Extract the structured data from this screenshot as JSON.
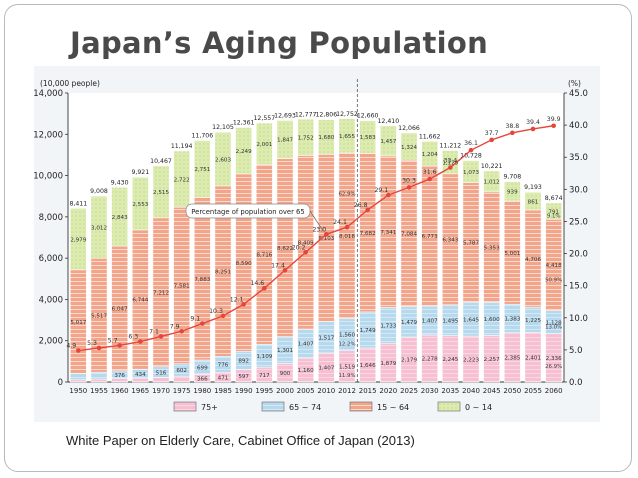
{
  "slide": {
    "title": "Japan’s Aging Population",
    "caption": "White Paper on Elderly Care, Cabinet Office of Japan (2013)"
  },
  "colors": {
    "age75": "#f6bfd2",
    "age65_74": "#b7d9ee",
    "age15_64": "#f3a58b",
    "age0_14": "#d9e9a9",
    "line": "#e5463b",
    "axis": "#333333"
  },
  "chart_data": {
    "type": "bar",
    "stacked": true,
    "left_axis_label": "(10,000 people)",
    "right_axis_label": "(%)",
    "ylim": [
      0,
      14000
    ],
    "y2lim": [
      0,
      45
    ],
    "left_ticks": [
      "0",
      "2,000",
      "4,000",
      "6,000",
      "8,000",
      "10,000",
      "12,000",
      "14,000"
    ],
    "right_ticks": [
      "0.0",
      "5.0",
      "10.0",
      "15.0",
      "20.0",
      "25.0",
      "30.0",
      "35.0",
      "40.0",
      "45.0"
    ],
    "categories": [
      "1950",
      "1955",
      "1960",
      "1965",
      "1970",
      "1975",
      "1980",
      "1985",
      "1990",
      "1995",
      "2000",
      "2005",
      "2010",
      "2012",
      "2015",
      "2020",
      "2025",
      "2030",
      "2035",
      "2040",
      "2045",
      "2050",
      "2055",
      "2060"
    ],
    "divider_after": "2012",
    "series": [
      {
        "name": "75+",
        "color_key": "age75",
        "values": [
          107,
          139,
          164,
          189,
          224,
          284,
          366,
          471,
          597,
          717,
          900,
          1160,
          1407,
          1519,
          1646,
          1879,
          2179,
          2278,
          2245,
          2223,
          2257,
          2385,
          2401,
          2336
        ],
        "labels": [
          "107",
          "139",
          "164",
          "189",
          "224",
          "284",
          "366",
          "471",
          "597",
          "717",
          "900",
          "1,160",
          "1,407",
          "1,519",
          "1,646",
          "1,879",
          "2,179",
          "2,278",
          "2,245",
          "2,223",
          "2,257",
          "2,385",
          "2,401",
          "2,336"
        ]
      },
      {
        "name": "65 ~ 74",
        "color_key": "age65_74",
        "values": [
          309,
          338,
          376,
          434,
          516,
          602,
          699,
          776,
          892,
          1109,
          1301,
          1407,
          1517,
          1560,
          1749,
          1733,
          1479,
          1407,
          1495,
          1645,
          1600,
          1383,
          1225,
          1128
        ],
        "labels": [
          "309",
          "338",
          "376",
          "434",
          "516",
          "602",
          "699",
          "776",
          "892",
          "1,109",
          "1,301",
          "1,407",
          "1,517",
          "1,560",
          "1,749",
          "1,733",
          "1,479",
          "1,407",
          "1,495",
          "1,645",
          "1,600",
          "1,383",
          "1,225",
          "1,128"
        ]
      },
      {
        "name": "15 ~ 64",
        "color_key": "age15_64",
        "values": [
          5017,
          5517,
          6047,
          6744,
          7212,
          7581,
          7883,
          8251,
          8590,
          8716,
          8622,
          8409,
          8103,
          8018,
          7682,
          7341,
          7084,
          6773,
          6343,
          5787,
          5353,
          5001,
          4706,
          4418
        ],
        "labels": [
          "5,017",
          "5,517",
          "6,047",
          "6,744",
          "7,212",
          "7,581",
          "7,883",
          "8,251",
          "8,590",
          "8,716",
          "8,622",
          "8,409",
          "8,103",
          "8,018",
          "7,682",
          "7,341",
          "7,084",
          "6,773",
          "6,343",
          "5,787",
          "5,353",
          "5,001",
          "4,706",
          "4,418"
        ]
      },
      {
        "name": "0 ~ 14",
        "color_key": "age0_14",
        "values": [
          2979,
          3012,
          2843,
          2553,
          2515,
          2722,
          2751,
          2603,
          2249,
          2001,
          1847,
          1752,
          1680,
          1655,
          1583,
          1457,
          1324,
          1204,
          1129,
          1073,
          1012,
          939,
          861,
          791
        ],
        "labels": [
          "2,979",
          "3,012",
          "2,843",
          "2,553",
          "2,515",
          "2,722",
          "2,751",
          "2,603",
          "2,249",
          "2,001",
          "1,847",
          "1,752",
          "1,680",
          "1,655",
          "1,583",
          "1,457",
          "1,324",
          "1,204",
          "1,129",
          "1,073",
          "1,012",
          "939",
          "861",
          "791"
        ]
      }
    ],
    "totals": [
      8411,
      9008,
      9430,
      9921,
      10467,
      11194,
      11706,
      12105,
      12361,
      12557,
      12693,
      12777,
      12806,
      12752,
      12660,
      12410,
      12066,
      11662,
      11212,
      10728,
      10221,
      9708,
      9193,
      8674
    ],
    "total_labels": [
      "8,411",
      "9,008",
      "9,430",
      "9,921",
      "10,467",
      "11,194",
      "11,706",
      "12,105",
      "12,361",
      "12,557",
      "12,693",
      "12,777",
      "12,806",
      "12,752",
      "12,660",
      "12,410",
      "12,066",
      "11,662",
      "11,212",
      "10,728",
      "10,221",
      "9,708",
      "9,193",
      "8,674"
    ],
    "percent_series": {
      "name": "Percentage of population over 65",
      "color_key": "line",
      "values": [
        4.9,
        5.3,
        5.7,
        6.3,
        7.1,
        7.9,
        9.1,
        10.3,
        12.1,
        14.6,
        17.4,
        20.2,
        23.0,
        24.1,
        26.8,
        29.1,
        30.3,
        31.6,
        33.4,
        36.1,
        37.7,
        38.8,
        39.4,
        39.9
      ],
      "labels": [
        "4.9",
        "5.3",
        "5.7",
        "6.3",
        "7.1",
        "7.9",
        "9.1",
        "10.3",
        "12.1",
        "14.6",
        "17.4",
        "20.2",
        "23.0",
        "24.1",
        "26.8",
        "29.1",
        "30.3",
        "31.6",
        "33.4",
        "36.1",
        "37.7",
        "38.8",
        "39.4",
        "39.9"
      ]
    },
    "share_notes_2012": [
      "13.0%",
      "12.2%",
      "11.9%",
      "62.9%"
    ],
    "share_notes_2060": [
      "9.1%",
      "50.9%",
      "13.0%",
      "26.9%"
    ],
    "legend": [
      "75+",
      "65 ~ 74",
      "15 ~ 64",
      "0 ~ 14"
    ],
    "legend_position": "bottom"
  }
}
